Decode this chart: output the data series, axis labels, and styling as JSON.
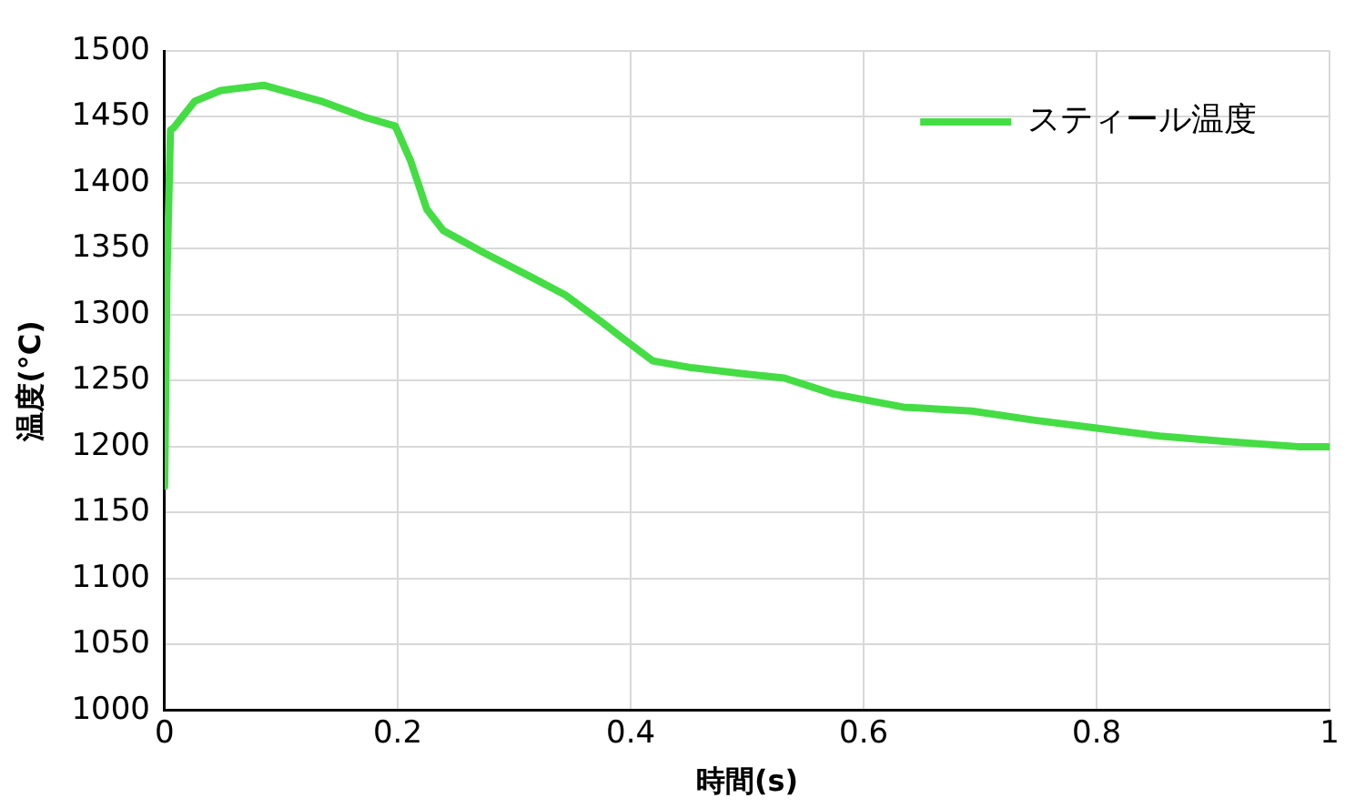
{
  "chart_data": {
    "type": "line",
    "xlabel": "時間(s)",
    "ylabel": "温度(°C)",
    "xlim": [
      0,
      1
    ],
    "xticks": [
      0,
      0.2,
      0.4,
      0.6,
      0.8,
      1
    ],
    "ylim": [
      1000,
      1500
    ],
    "yticks": [
      1000,
      1050,
      1100,
      1150,
      1200,
      1250,
      1300,
      1350,
      1400,
      1450,
      1500
    ],
    "grid": true,
    "legend": "top right",
    "marker": "none",
    "line_style": "solid",
    "series": [
      {
        "name": "スティール温度",
        "color": "#44dd44",
        "x": [
          0,
          0.002,
          0.005,
          0.008,
          0.026,
          0.048,
          0.085,
          0.134,
          0.171,
          0.198,
          0.211,
          0.225,
          0.239,
          0.274,
          0.316,
          0.344,
          0.376,
          0.392,
          0.419,
          0.451,
          0.5,
          0.532,
          0.574,
          0.634,
          0.693,
          0.747,
          0.8,
          0.854,
          0.909,
          0.973,
          1
        ],
        "values": [
          1170,
          1330,
          1440,
          1442,
          1462,
          1470,
          1474,
          1462,
          1450,
          1443,
          1417,
          1380,
          1364,
          1347,
          1328,
          1315,
          1294,
          1283,
          1265,
          1260,
          1255,
          1252,
          1240,
          1230,
          1227,
          1220,
          1214,
          1208,
          1204,
          1200,
          1200
        ]
      }
    ]
  }
}
